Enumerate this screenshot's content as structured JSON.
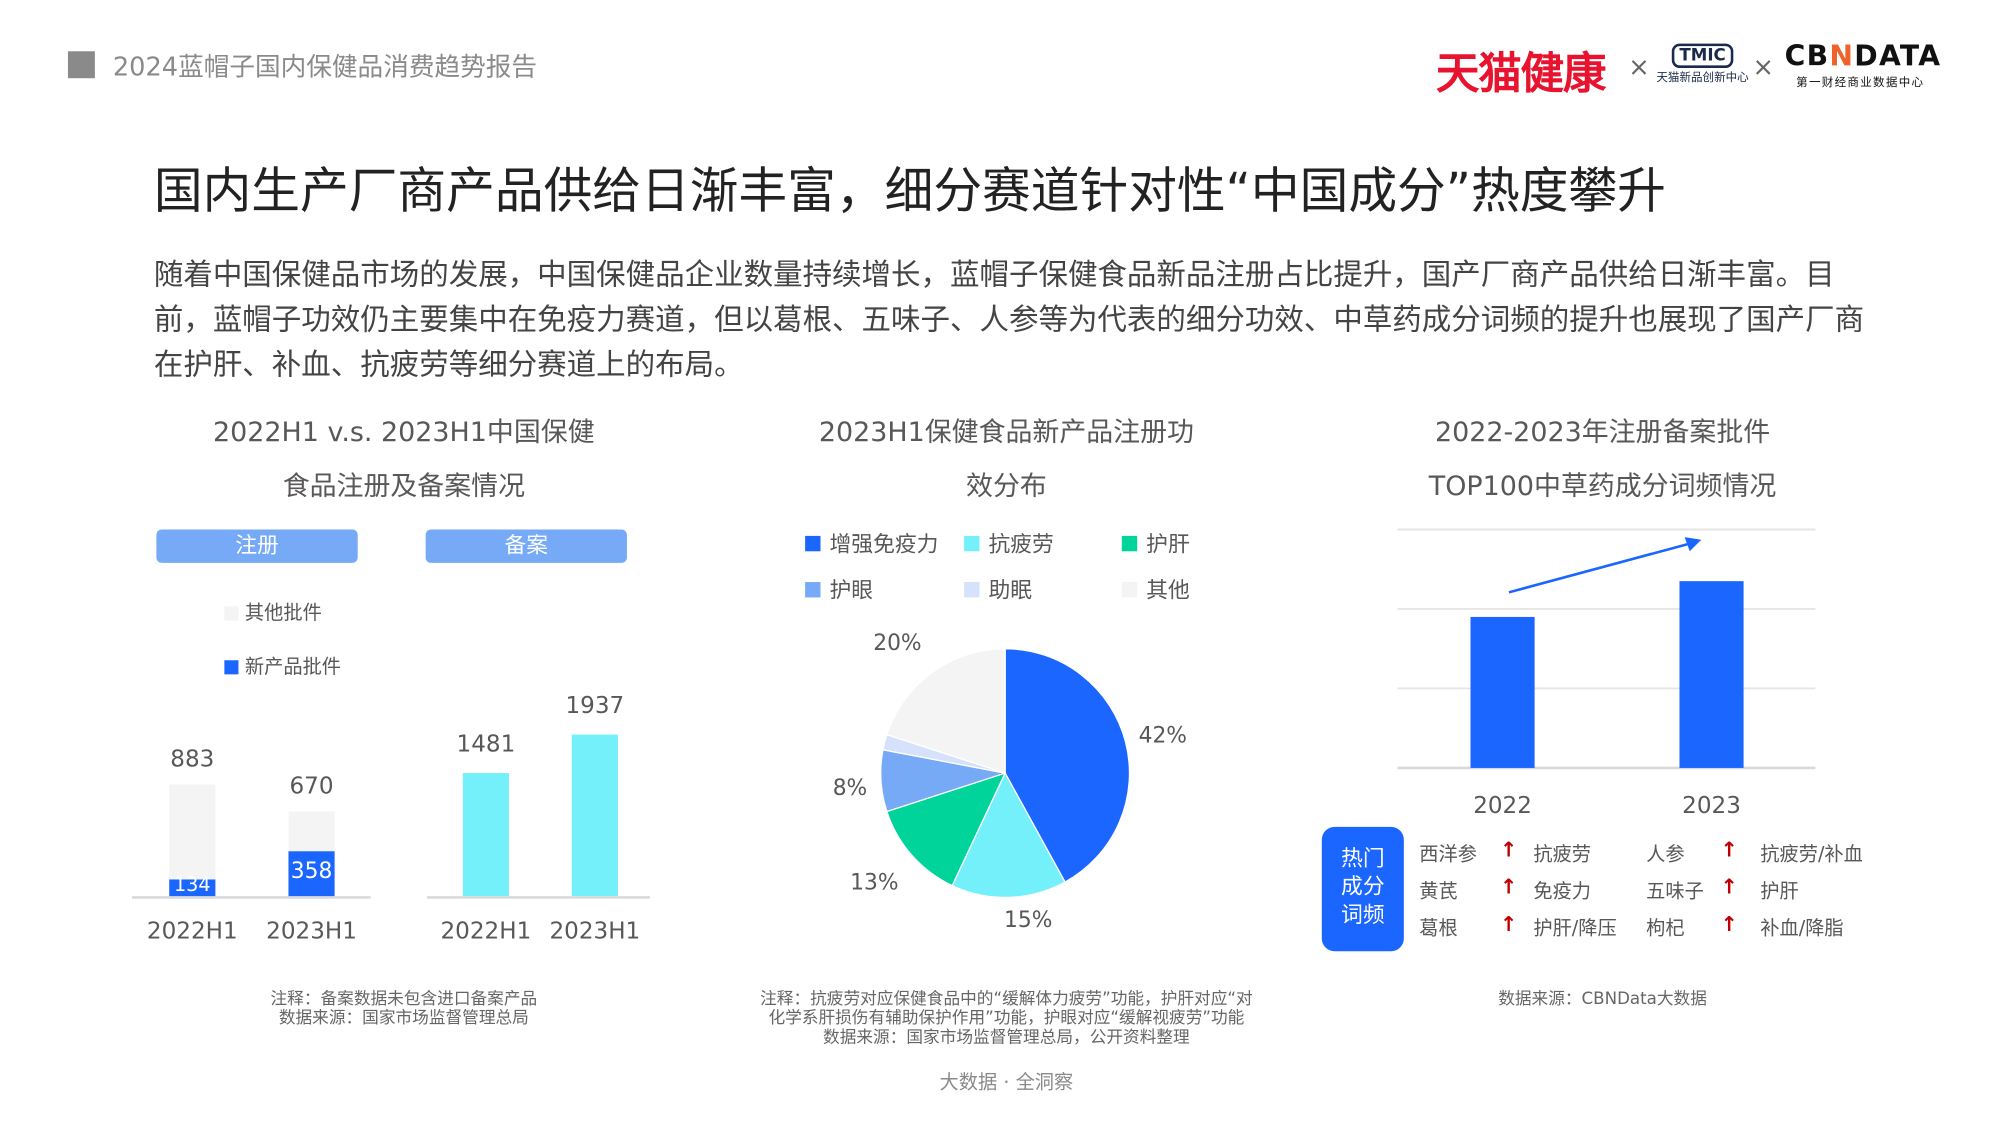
{
  "header": {
    "report_title": "2024蓝帽子国内保健品消费趋势报告",
    "logo_tmall_health": "天猫健康",
    "logo_tmic": "TMIC",
    "logo_tmic_sub": "天猫新品创新中心",
    "logo_cbn": "CBNDATA",
    "logo_cbn_sub": "第一财经商业数据中心",
    "times": "×"
  },
  "headline": "国内生产厂商产品供给日渐丰富，细分赛道针对性“中国成分”热度攀升",
  "paragraph": "随着中国保健品市场的发展，中国保健品企业数量持续增长，蓝帽子保健食品新品注册占比提升，国产厂商产品供给日渐丰富。目前，蓝帽子功效仍主要集中在免疫力赛道，但以葛根、五味子、人参等为代表的细分功效、中草药成分词频的提升也展现了国产厂商在护肝、补血、抗疲劳等细分赛道上的布局。",
  "footer": "大数据 · 全洞察",
  "colors": {
    "blue": "#1b66ff",
    "cyan": "#73f0fa",
    "green": "#00d49a",
    "lightblue": "#76aaf7",
    "paleblue": "#d6e2fb",
    "gray": "#f4f4f4",
    "arrow": "#c00000"
  },
  "chart_data": [
    {
      "type": "bar",
      "title": "2022H1 v.s. 2023H1中国保健食品注册及备案情况",
      "title_lines": [
        "2022H1 v.s. 2023H1中国保健",
        "食品注册及备案情况"
      ],
      "panels": [
        {
          "label": "注册",
          "stacked": true,
          "categories": [
            "2022H1",
            "2023H1"
          ],
          "legend": [
            "其他批件",
            "新产品批件"
          ],
          "totals": [
            883,
            670
          ],
          "series": [
            {
              "name": "新产品批件",
              "values": [
                134,
                358
              ]
            },
            {
              "name": "其他批件",
              "values": [
                749,
                312
              ]
            }
          ]
        },
        {
          "label": "备案",
          "categories": [
            "2022H1",
            "2023H1"
          ],
          "values": [
            1481,
            1937
          ]
        }
      ],
      "note_lines": [
        "注释：备案数据未包含进口备案产品",
        "数据来源：国家市场监督管理总局"
      ]
    },
    {
      "type": "pie",
      "title": "2023H1保健食品新产品注册功效分布",
      "title_lines": [
        "2023H1保健食品新产品注册功",
        "效分布"
      ],
      "legend": [
        "增强免疫力",
        "抗疲劳",
        "护肝",
        "护眼",
        "助眠",
        "其他"
      ],
      "values": [
        42,
        15,
        13,
        8,
        2,
        20
      ],
      "labels": [
        "42%",
        "15%",
        "13%",
        "8%",
        "",
        "20%"
      ],
      "note_lines": [
        "注释：抗疲劳对应保健食品中的“缓解体力疲劳”功能，护肝对应“对",
        "化学系肝损伤有辅助保护作用”功能，护眼对应“缓解视疲劳”功能",
        "数据来源：国家市场监督管理总局，公开资料整理"
      ]
    },
    {
      "type": "bar",
      "title": "2022-2023年注册备案批件TOP100中草药成分词频情况",
      "title_lines": [
        "2022-2023年注册备案批件",
        "TOP100中草药成分词频情况"
      ],
      "categories": [
        "2022",
        "2023"
      ],
      "values": [
        1.9,
        2.35
      ],
      "ylim": [
        0,
        3
      ],
      "grid": true,
      "trend": "up",
      "hot_label": "热门成分词频",
      "hot_label_lines": [
        "热门",
        "成分",
        "词频"
      ],
      "keywords": [
        {
          "herb": "西洋参",
          "effect": "抗疲劳"
        },
        {
          "herb": "人参",
          "effect": "抗疲劳/补血"
        },
        {
          "herb": "黄芪",
          "effect": "免疫力"
        },
        {
          "herb": "五味子",
          "effect": "护肝"
        },
        {
          "herb": "葛根",
          "effect": "护肝/降压"
        },
        {
          "herb": "枸杞",
          "effect": "补血/降脂"
        }
      ],
      "arrow_icon": "up-arrow",
      "note_lines": [
        "数据来源：CBNData大数据"
      ]
    }
  ]
}
